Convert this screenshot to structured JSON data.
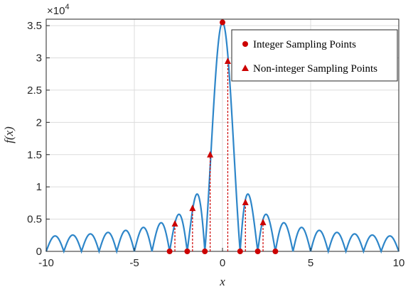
{
  "chart_data": {
    "type": "line",
    "title": "",
    "xlabel": "x",
    "ylabel": "f(x)",
    "xlim": [
      -10,
      10
    ],
    "ylim": [
      0,
      36000
    ],
    "x_ticks": [
      -10,
      -5,
      0,
      5,
      10
    ],
    "x_tick_labels": [
      "-10",
      "-5",
      "0",
      "5",
      "10"
    ],
    "y_ticks": [
      0,
      5000,
      10000,
      15000,
      20000,
      25000,
      30000,
      35000
    ],
    "y_tick_labels": [
      "0",
      "0.5",
      "1",
      "1.5",
      "2",
      "2.5",
      "3",
      "3.5"
    ],
    "y_multiplier": {
      "base": "×10",
      "exponent": "4"
    },
    "grid": true,
    "legend_position": "top-right",
    "curve": {
      "description": "|sinc|-like magnitude curve with zeros at nonzero integers",
      "peak": 35500,
      "x_range": [
        -10,
        10
      ]
    },
    "series": [
      {
        "name": "Integer Sampling Points",
        "marker": "circle",
        "color": "#cc0000",
        "points": [
          {
            "x": -3,
            "y": 0
          },
          {
            "x": -2,
            "y": 0
          },
          {
            "x": -1,
            "y": 0
          },
          {
            "x": 0,
            "y": 35500
          },
          {
            "x": 1,
            "y": 0
          },
          {
            "x": 2,
            "y": 0
          },
          {
            "x": 3,
            "y": 0
          }
        ]
      },
      {
        "name": "Non-integer Sampling Points",
        "marker": "triangle",
        "color": "#cc0000",
        "points": [
          {
            "x": -2.7,
            "y": 4300
          },
          {
            "x": -1.7,
            "y": 6700
          },
          {
            "x": -0.7,
            "y": 15000
          },
          {
            "x": 0.3,
            "y": 29500
          },
          {
            "x": 1.3,
            "y": 7600
          },
          {
            "x": 2.3,
            "y": 4500
          }
        ]
      }
    ],
    "colors": {
      "curve": "#2e86c9",
      "markers": "#cc0000",
      "grid": "#dcdcdc",
      "axis": "#262626"
    }
  }
}
